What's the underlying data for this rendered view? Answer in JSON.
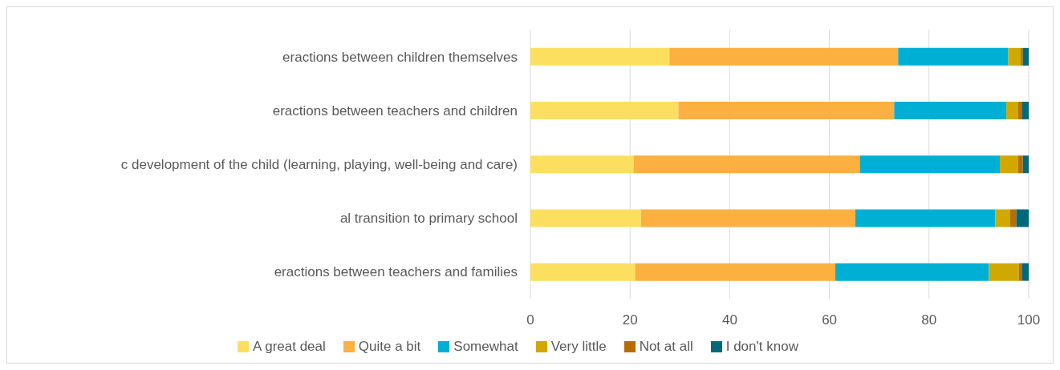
{
  "chart_data": {
    "type": "bar",
    "orientation": "horizontal",
    "stacked": true,
    "categories": [
      "eractions between children themselves",
      "eractions between teachers and children",
      "c development of the child (learning, playing, well-being and care)",
      "al transition to primary school",
      "eractions between teachers and families"
    ],
    "series": [
      {
        "name": "A great deal",
        "color": "#fddf60",
        "values": [
          27.9,
          29.7,
          20.7,
          22.2,
          21.0
        ]
      },
      {
        "name": "Quite a bit",
        "color": "#fbb040",
        "values": [
          45.9,
          43.3,
          45.4,
          43.0,
          40.2
        ]
      },
      {
        "name": "Somewhat",
        "color": "#00b0d4",
        "values": [
          22.1,
          22.5,
          28.1,
          28.1,
          30.8
        ]
      },
      {
        "name": "Very little",
        "color": "#d1a800",
        "values": [
          2.5,
          2.4,
          3.7,
          3.0,
          6.0
        ]
      },
      {
        "name": "Not at all",
        "color": "#b96d00",
        "values": [
          0.4,
          0.7,
          0.9,
          1.2,
          0.6
        ]
      },
      {
        "name": "I don't know",
        "color": "#006a7a",
        "values": [
          1.2,
          1.4,
          1.2,
          2.5,
          1.4
        ]
      }
    ],
    "xlim": [
      0,
      100
    ],
    "xticks": [
      0,
      20,
      40,
      60,
      80,
      100
    ],
    "grid": "x",
    "legend": "bottom"
  }
}
